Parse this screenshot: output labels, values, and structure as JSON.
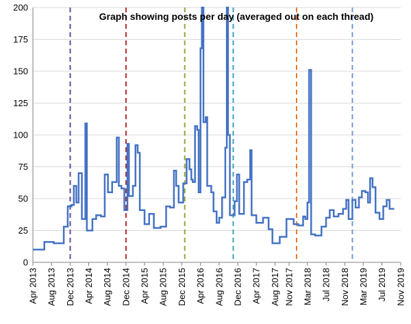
{
  "chart_data": {
    "type": "line",
    "title": "Graph showing posts per day (averaged out on each thread)",
    "xlabel": "",
    "ylabel": "",
    "ylim": [
      0,
      200
    ],
    "y_ticks": [
      0,
      25,
      50,
      75,
      100,
      125,
      150,
      175,
      200
    ],
    "x_range": [
      "2013-04-01",
      "2019-11-01"
    ],
    "x_tick_labels": [
      "Apr 2013",
      "Aug 2013",
      "Dec 2013",
      "Apr 2014",
      "Aug 2014",
      "Dec 2014",
      "Apr 2015",
      "Aug 2015",
      "Dec 2015",
      "Apr 2016",
      "Aug 2016",
      "Dec 2016",
      "Apr 2017",
      "Aug 2017",
      "Nov 2017",
      "Mar 2018",
      "Jul 2018",
      "Nov 2018",
      "Mar 2019",
      "Jul 2019",
      "Nov 2019"
    ],
    "x_tick_dates": [
      "2013-04-01",
      "2013-08-01",
      "2013-12-01",
      "2014-04-01",
      "2014-08-01",
      "2014-12-01",
      "2015-04-01",
      "2015-08-01",
      "2015-12-01",
      "2016-04-01",
      "2016-08-01",
      "2016-12-01",
      "2017-04-01",
      "2017-08-01",
      "2017-11-01",
      "2018-03-01",
      "2018-07-01",
      "2018-11-01",
      "2019-03-01",
      "2019-07-01",
      "2019-11-01"
    ],
    "grid": "horizontal",
    "series_color": "#4472c4",
    "series": [
      {
        "name": "",
        "points": [
          [
            "2013-04-01",
            10
          ],
          [
            "2013-06-15",
            16
          ],
          [
            "2013-08-15",
            15
          ],
          [
            "2013-10-20",
            28
          ],
          [
            "2013-11-15",
            44
          ],
          [
            "2013-12-10",
            45
          ],
          [
            "2013-12-25",
            60
          ],
          [
            "2014-01-10",
            47
          ],
          [
            "2014-01-25",
            70
          ],
          [
            "2014-02-15",
            34
          ],
          [
            "2014-03-10",
            109
          ],
          [
            "2014-03-20",
            25
          ],
          [
            "2014-04-25",
            34
          ],
          [
            "2014-05-20",
            37
          ],
          [
            "2014-06-20",
            36
          ],
          [
            "2014-07-15",
            69
          ],
          [
            "2014-08-05",
            55
          ],
          [
            "2014-09-01",
            63
          ],
          [
            "2014-10-01",
            98
          ],
          [
            "2014-10-15",
            60
          ],
          [
            "2014-11-01",
            58
          ],
          [
            "2014-11-20",
            41
          ],
          [
            "2014-12-10",
            93
          ],
          [
            "2014-12-20",
            52
          ],
          [
            "2015-01-15",
            60
          ],
          [
            "2015-02-01",
            92
          ],
          [
            "2015-02-15",
            86
          ],
          [
            "2015-03-01",
            41
          ],
          [
            "2015-04-01",
            30
          ],
          [
            "2015-05-01",
            38
          ],
          [
            "2015-06-01",
            27
          ],
          [
            "2015-07-15",
            28
          ],
          [
            "2015-08-20",
            44
          ],
          [
            "2015-09-15",
            43
          ],
          [
            "2015-10-10",
            72
          ],
          [
            "2015-10-25",
            60
          ],
          [
            "2015-11-10",
            47
          ],
          [
            "2015-12-10",
            62
          ],
          [
            "2016-01-01",
            81
          ],
          [
            "2016-01-20",
            73
          ],
          [
            "2016-02-01",
            65
          ],
          [
            "2016-02-10",
            63
          ],
          [
            "2016-02-25",
            107
          ],
          [
            "2016-03-10",
            104
          ],
          [
            "2016-03-20",
            55
          ],
          [
            "2016-04-01",
            168
          ],
          [
            "2016-04-10",
            200
          ],
          [
            "2016-04-20",
            110
          ],
          [
            "2016-05-05",
            114
          ],
          [
            "2016-05-15",
            60
          ],
          [
            "2016-06-10",
            55
          ],
          [
            "2016-06-25",
            40
          ],
          [
            "2016-07-15",
            31
          ],
          [
            "2016-08-01",
            35
          ],
          [
            "2016-08-20",
            51
          ],
          [
            "2016-09-10",
            90
          ],
          [
            "2016-09-20",
            200
          ],
          [
            "2016-09-28",
            100
          ],
          [
            "2016-10-10",
            37
          ],
          [
            "2016-11-10",
            48
          ],
          [
            "2016-11-25",
            69
          ],
          [
            "2016-12-10",
            38
          ],
          [
            "2017-01-10",
            63
          ],
          [
            "2017-02-01",
            65
          ],
          [
            "2017-02-20",
            88
          ],
          [
            "2017-03-01",
            37
          ],
          [
            "2017-04-01",
            31
          ],
          [
            "2017-05-15",
            35
          ],
          [
            "2017-06-20",
            26
          ],
          [
            "2017-07-15",
            15
          ],
          [
            "2017-09-01",
            20
          ],
          [
            "2017-10-15",
            34
          ],
          [
            "2017-12-01",
            30
          ],
          [
            "2018-01-01",
            29
          ],
          [
            "2018-02-01",
            36
          ],
          [
            "2018-02-15",
            34
          ],
          [
            "2018-03-01",
            47
          ],
          [
            "2018-03-12",
            151
          ],
          [
            "2018-03-25",
            22
          ],
          [
            "2018-04-20",
            21
          ],
          [
            "2018-06-01",
            28
          ],
          [
            "2018-07-01",
            35
          ],
          [
            "2018-07-25",
            41
          ],
          [
            "2018-08-20",
            36
          ],
          [
            "2018-09-20",
            38
          ],
          [
            "2018-10-20",
            42
          ],
          [
            "2018-11-10",
            49
          ],
          [
            "2018-11-25",
            34
          ],
          [
            "2018-12-20",
            49
          ],
          [
            "2019-01-10",
            43
          ],
          [
            "2019-02-01",
            51
          ],
          [
            "2019-02-20",
            56
          ],
          [
            "2019-03-15",
            55
          ],
          [
            "2019-04-01",
            47
          ],
          [
            "2019-04-15",
            66
          ],
          [
            "2019-05-01",
            59
          ],
          [
            "2019-05-20",
            39
          ],
          [
            "2019-06-15",
            34
          ],
          [
            "2019-07-10",
            44
          ],
          [
            "2019-08-01",
            49
          ],
          [
            "2019-08-20",
            42
          ],
          [
            "2019-09-20",
            42
          ]
        ]
      }
    ],
    "reference_lines": [
      {
        "date": "2013-12-01",
        "color": "#5b4a9e"
      },
      {
        "date": "2014-12-01",
        "color": "#b03030"
      },
      {
        "date": "2015-12-20",
        "color": "#8fa832"
      },
      {
        "date": "2016-11-01",
        "color": "#3aa0b8"
      },
      {
        "date": "2017-12-20",
        "color": "#e6782a"
      },
      {
        "date": "2018-12-20",
        "color": "#6f9ad8"
      }
    ]
  }
}
